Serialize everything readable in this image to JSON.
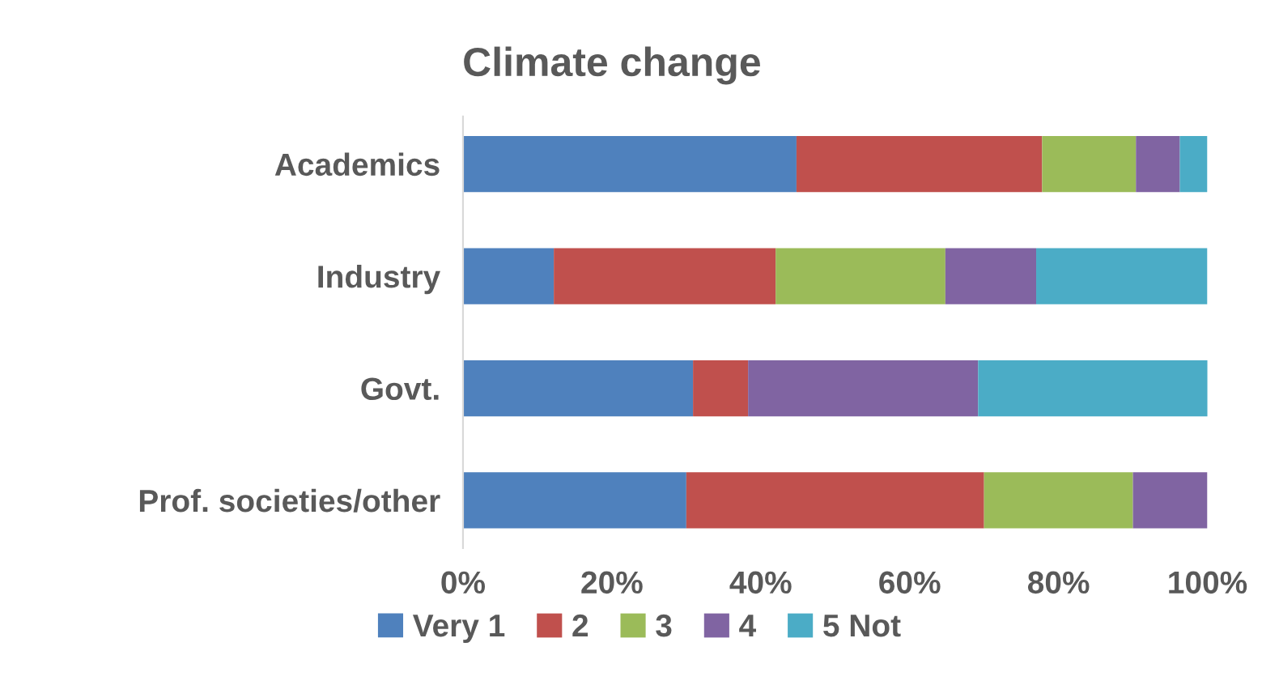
{
  "chart_data": {
    "type": "bar",
    "title": "Climate change",
    "orientation": "horizontal",
    "stacked": true,
    "categories": [
      "Academics",
      "Industry",
      "Govt.",
      "Prof. societies/other"
    ],
    "series": [
      {
        "name": "Very 1",
        "color": "#4f81bd",
        "values": [
          44.8,
          12.2,
          30.9,
          30
        ]
      },
      {
        "name": "2",
        "color": "#c0504d",
        "values": [
          33,
          29.8,
          7.4,
          40
        ]
      },
      {
        "name": "3",
        "color": "#9bbb59",
        "values": [
          12.6,
          22.8,
          0,
          20
        ]
      },
      {
        "name": "4",
        "color": "#8064a2",
        "values": [
          5.9,
          12.2,
          30.9,
          10
        ]
      },
      {
        "name": "5 Not",
        "color": "#4bacc6",
        "values": [
          3.7,
          23,
          30.9,
          0
        ]
      }
    ],
    "xlim": [
      0,
      100
    ],
    "xticks": [
      {
        "value": 0,
        "label": "0%"
      },
      {
        "value": 20,
        "label": "20%"
      },
      {
        "value": 40,
        "label": "40%"
      },
      {
        "value": 60,
        "label": "60%"
      },
      {
        "value": 80,
        "label": "80%"
      },
      {
        "value": 100,
        "label": "100%"
      }
    ],
    "grid": false,
    "legend": "bottom"
  }
}
